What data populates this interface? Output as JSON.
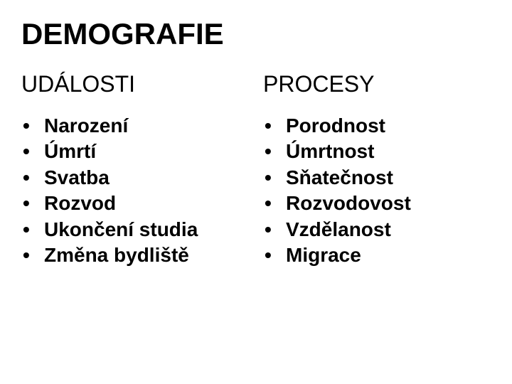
{
  "title": "DEMOGRAFIE",
  "columns": [
    {
      "heading": "UDÁLOSTI",
      "items": [
        "Narození",
        "Úmrtí",
        "Svatba",
        "Rozvod",
        "Ukončení studia",
        "Změna bydliště"
      ]
    },
    {
      "heading": "PROCESY",
      "items": [
        "Porodnost",
        "Úmrtnost",
        "Sňatečnost",
        "Rozvodovost",
        "Vzdělanost",
        "Migrace"
      ]
    }
  ],
  "styling": {
    "background_color": "#ffffff",
    "text_color": "#000000",
    "title_fontsize": 42,
    "title_fontweight": "bold",
    "heading_fontsize": 32,
    "heading_fontweight": "normal",
    "item_fontsize": 28,
    "item_fontweight": "bold",
    "bullet_char": "•",
    "font_family": "Arial"
  }
}
